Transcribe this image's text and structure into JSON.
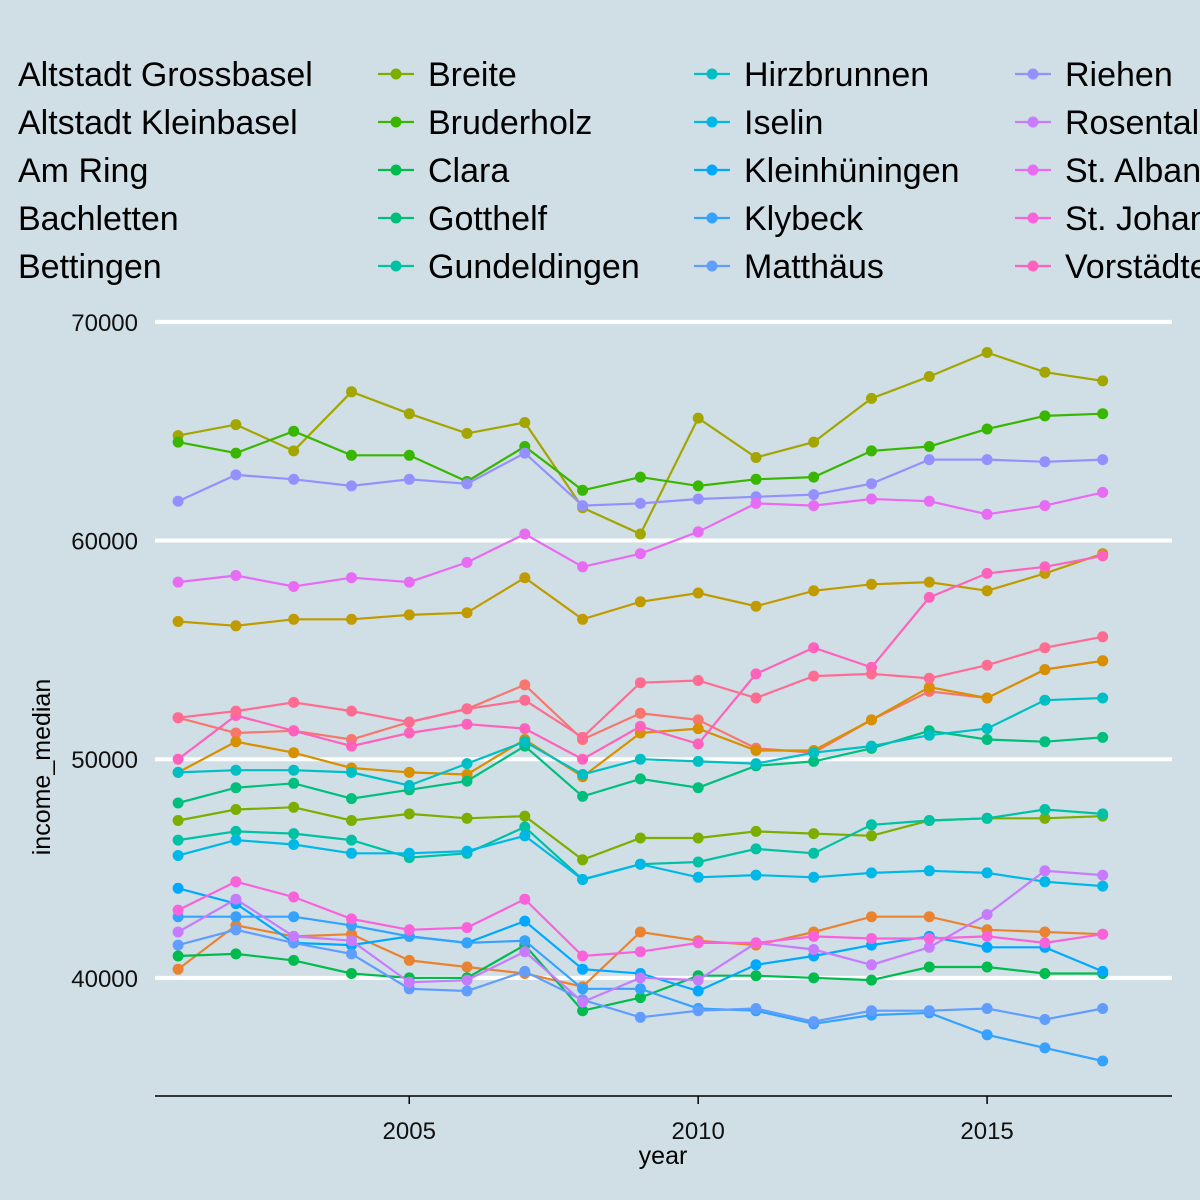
{
  "chart_data": {
    "type": "line",
    "xlabel": "year",
    "ylabel": "income_median",
    "x": [
      2001,
      2002,
      2003,
      2004,
      2005,
      2006,
      2007,
      2008,
      2009,
      2010,
      2011,
      2012,
      2013,
      2014,
      2015,
      2016,
      2017
    ],
    "xlim": [
      2000.6,
      2018.2
    ],
    "ylim": [
      34600,
      71000
    ],
    "xticks": [
      2005,
      2010,
      2015
    ],
    "yticks": [
      40000,
      50000,
      60000,
      70000
    ],
    "xtick_labels": [
      "2005",
      "2010",
      "2015"
    ],
    "ytick_labels": [
      "40000",
      "50000",
      "60000",
      "70000"
    ],
    "grid": "horizontal major lines only",
    "legend_position": "top",
    "series": [
      {
        "name": "Altstadt Grossbasel",
        "color": "#F8766D",
        "values": [
          51900,
          51200,
          51300,
          50900,
          51700,
          52300,
          53400,
          50900,
          52100,
          51800,
          50500,
          50300,
          51800,
          53100,
          52800,
          54100,
          54500
        ]
      },
      {
        "name": "Altstadt Kleinbasel",
        "color": "#EA8331",
        "values": [
          40400,
          42400,
          41900,
          42000,
          40800,
          40500,
          40200,
          39600,
          42100,
          41700,
          41500,
          42100,
          42800,
          42800,
          42200,
          42100,
          42000
        ]
      },
      {
        "name": "Am Ring",
        "color": "#D89000",
        "values": [
          49400,
          50800,
          50300,
          49600,
          49400,
          49300,
          50900,
          49200,
          51200,
          51400,
          50400,
          50400,
          51800,
          53300,
          52800,
          54100,
          54500
        ]
      },
      {
        "name": "Bachletten",
        "color": "#C09B00",
        "values": [
          56300,
          56100,
          56400,
          56400,
          56600,
          56700,
          58300,
          56400,
          57200,
          57600,
          57000,
          57700,
          58000,
          58100,
          57700,
          58500,
          59400
        ]
      },
      {
        "name": "Bettingen",
        "color": "#A3A500",
        "values": [
          64800,
          65300,
          64100,
          66800,
          65800,
          64900,
          65400,
          61500,
          60300,
          65600,
          63800,
          64500,
          66500,
          67500,
          68600,
          67700,
          67300
        ]
      },
      {
        "name": "Breite",
        "color": "#7CAE00",
        "values": [
          47200,
          47700,
          47800,
          47200,
          47500,
          47300,
          47400,
          45400,
          46400,
          46400,
          46700,
          46600,
          46500,
          47200,
          47300,
          47300,
          47400
        ]
      },
      {
        "name": "Bruderholz",
        "color": "#39B600",
        "values": [
          64500,
          64000,
          65000,
          63900,
          63900,
          62700,
          64300,
          62300,
          62900,
          62500,
          62800,
          62900,
          64100,
          64300,
          65100,
          65700,
          65800
        ]
      },
      {
        "name": "Clara",
        "color": "#00BB4E",
        "values": [
          41000,
          41100,
          40800,
          40200,
          40000,
          40000,
          41500,
          38500,
          39100,
          40100,
          40100,
          40000,
          39900,
          40500,
          40500,
          40200,
          40200
        ]
      },
      {
        "name": "Gotthelf",
        "color": "#00BF7D",
        "values": [
          48000,
          48700,
          48900,
          48200,
          48600,
          49000,
          50600,
          48300,
          49100,
          48700,
          49700,
          49900,
          50500,
          51300,
          50900,
          50800,
          51000
        ]
      },
      {
        "name": "Gundeldingen",
        "color": "#00C1A3",
        "values": [
          46300,
          46700,
          46600,
          46300,
          45500,
          45700,
          46900,
          44500,
          45200,
          45300,
          45900,
          45700,
          47000,
          47200,
          47300,
          47700,
          47500
        ]
      },
      {
        "name": "Hirzbrunnen",
        "color": "#00BFC4",
        "values": [
          49400,
          49500,
          49500,
          49400,
          48800,
          49800,
          50800,
          49300,
          50000,
          49900,
          49800,
          50300,
          50600,
          51100,
          51400,
          52700,
          52800
        ]
      },
      {
        "name": "Iselin",
        "color": "#00B8E7",
        "values": [
          45600,
          46300,
          46100,
          45700,
          45700,
          45800,
          46500,
          44500,
          45200,
          44600,
          44700,
          44600,
          44800,
          44900,
          44800,
          44400,
          44200
        ]
      },
      {
        "name": "Kleinhüningen",
        "color": "#00A9FF",
        "values": [
          44100,
          43400,
          41600,
          41500,
          41900,
          41600,
          42600,
          40400,
          40200,
          39400,
          40600,
          41000,
          41500,
          41900,
          41400,
          41400,
          40300
        ]
      },
      {
        "name": "Klybeck",
        "color": "#35A2FF",
        "values": [
          42800,
          42800,
          42800,
          42400,
          41900,
          41600,
          41700,
          39500,
          39500,
          38600,
          38500,
          37900,
          38300,
          38400,
          37400,
          36800,
          36200
        ]
      },
      {
        "name": "Matthäus",
        "color": "#619CFF",
        "values": [
          41500,
          42200,
          41600,
          41100,
          39500,
          39400,
          40300,
          39000,
          38200,
          38500,
          38600,
          38000,
          38500,
          38500,
          38600,
          38100,
          38600
        ]
      },
      {
        "name": "Riehen",
        "color": "#9590FF",
        "values": [
          61800,
          63000,
          62800,
          62500,
          62800,
          62600,
          64000,
          61600,
          61700,
          61900,
          62000,
          62100,
          62600,
          63700,
          63700,
          63600,
          63700
        ]
      },
      {
        "name": "Rosental",
        "color": "#C77CFF",
        "values": [
          42100,
          43600,
          41900,
          41700,
          39800,
          39900,
          41200,
          38900,
          40000,
          39900,
          41600,
          41300,
          40600,
          41400,
          42900,
          44900,
          44700
        ]
      },
      {
        "name": "St. Alban",
        "color": "#E76BF3",
        "values": [
          58100,
          58400,
          57900,
          58300,
          58100,
          59000,
          60300,
          58800,
          59400,
          60400,
          61700,
          61600,
          61900,
          61800,
          61200,
          61600,
          62200
        ]
      },
      {
        "name": "St. Johann",
        "color": "#FA62DB",
        "values": [
          43100,
          44400,
          43700,
          42700,
          42200,
          42300,
          43600,
          41000,
          41200,
          41600,
          41600,
          41900,
          41800,
          41800,
          41900,
          41600,
          42000
        ]
      },
      {
        "name": "Vorstädte",
        "color": "#FF62BC",
        "values": [
          50000,
          52000,
          51300,
          50600,
          51200,
          51600,
          51400,
          50000,
          51500,
          50700,
          53900,
          55100,
          54200,
          57400,
          58500,
          58800,
          59300
        ]
      },
      {
        "name": "",
        "color": "#FF6C91",
        "values": [
          51900,
          52200,
          52600,
          52200,
          51700,
          52300,
          52700,
          51000,
          53500,
          53600,
          52800,
          53800,
          53900,
          53700,
          54300,
          55100,
          55600
        ]
      }
    ]
  }
}
